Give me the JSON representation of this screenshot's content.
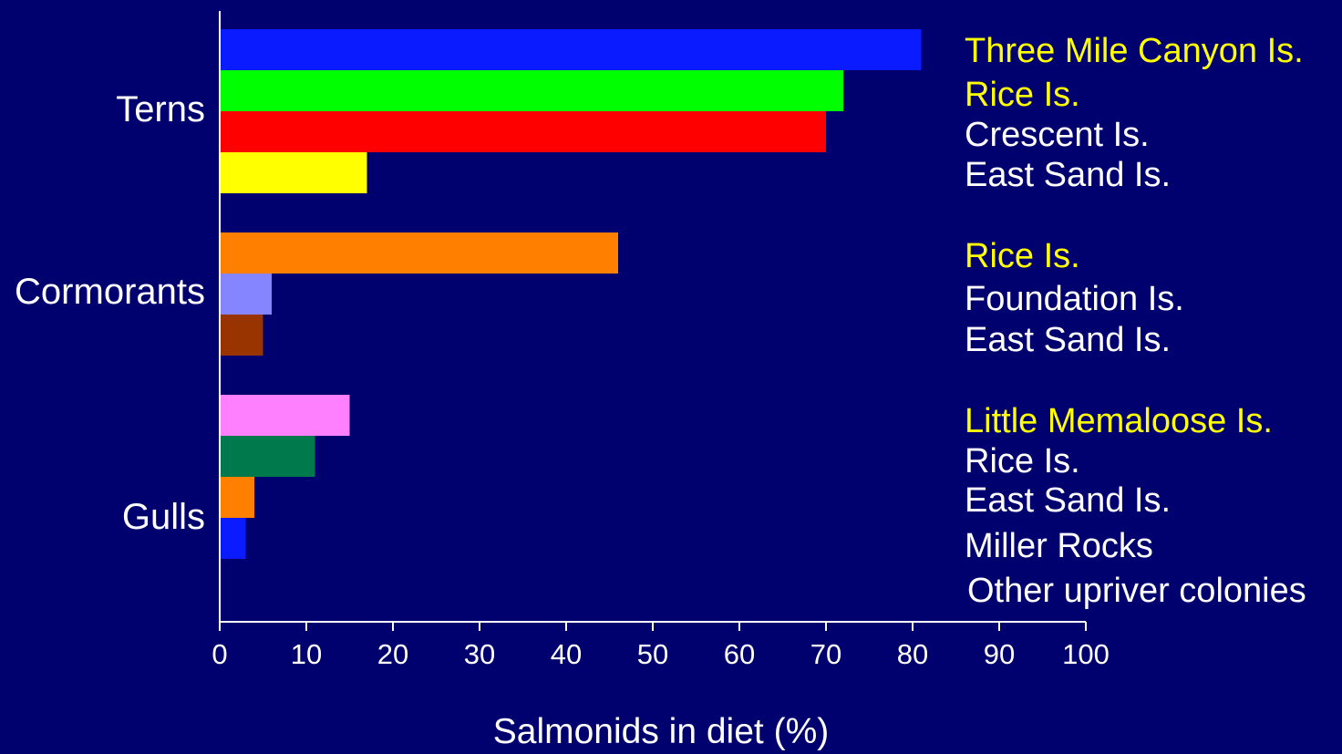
{
  "chart_data": {
    "type": "bar",
    "orientation": "horizontal",
    "xlabel": "Salmonids in diet (%)",
    "xlim": [
      0,
      100
    ],
    "x_ticks": [
      "0",
      "10",
      "20",
      "30",
      "40",
      "50",
      "60",
      "70",
      "80",
      "90",
      "100"
    ],
    "grid": false,
    "background_color": "#00006e",
    "text_color": "#ffffff",
    "highlight_text_color": "#ffff00",
    "groups": [
      {
        "name": "Terns",
        "bars": [
          {
            "label": "Three Mile Canyon Is.",
            "value": 81,
            "color": "#0b1bff",
            "highlight": true
          },
          {
            "label": "Rice Is.",
            "value": 72,
            "color": "#00ff00",
            "highlight": true
          },
          {
            "label": "Crescent Is.",
            "value": 70,
            "color": "#ff0000",
            "highlight": false
          },
          {
            "label": "East Sand Is.",
            "value": 17,
            "color": "#ffff00",
            "highlight": false
          }
        ]
      },
      {
        "name": "Cormorants",
        "bars": [
          {
            "label": "Rice Is.",
            "value": 46,
            "color": "#ff8000",
            "highlight": true
          },
          {
            "label": "Foundation Is.",
            "value": 6,
            "color": "#8585ff",
            "highlight": false
          },
          {
            "label": "East Sand Is.",
            "value": 5,
            "color": "#993300",
            "highlight": false
          }
        ]
      },
      {
        "name": "Gulls",
        "bars": [
          {
            "label": "Little Memaloose Is.",
            "value": 15,
            "color": "#ff80ff",
            "highlight": true
          },
          {
            "label": "Rice Is.",
            "value": 11,
            "color": "#007a4d",
            "highlight": false
          },
          {
            "label": "East Sand Is.",
            "value": 4,
            "color": "#ff8000",
            "highlight": false
          },
          {
            "label": "Miller Rocks",
            "value": 3,
            "color": "#0b1bff",
            "highlight": false
          },
          {
            "label": "Other upriver colonies",
            "value": 0,
            "color": "#ff8000",
            "highlight": false
          }
        ]
      }
    ]
  }
}
